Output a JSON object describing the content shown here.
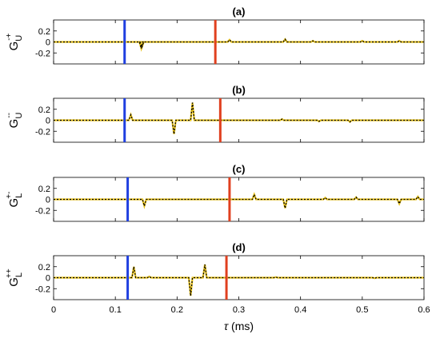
{
  "chart_data": [
    {
      "type": "line",
      "panel_label": "(a)",
      "ylabel": "G_U^{-+}",
      "ylabel_main": "G",
      "ylabel_sub": "U",
      "ylabel_sup": "-+",
      "xlim": [
        0,
        0.6
      ],
      "ylim": [
        -0.4,
        0.4
      ],
      "yticks": [
        "0.2",
        "0",
        "-0.2"
      ],
      "yticks_values": [
        0.2,
        0,
        -0.2
      ],
      "vlines": [
        {
          "x": 0.115,
          "color": "#1f3fe0"
        },
        {
          "x": 0.262,
          "color": "#e0401f"
        }
      ],
      "series": [
        {
          "color": "#e8c21a",
          "style": "solid",
          "spikes": [
            [
              0.142,
              -0.12
            ],
            [
              0.143,
              -0.1
            ],
            [
              0.285,
              0.04
            ],
            [
              0.375,
              0.05
            ],
            [
              0.42,
              0.02
            ],
            [
              0.5,
              0.02
            ],
            [
              0.56,
              0.02
            ]
          ]
        },
        {
          "color": "#000000",
          "style": "dashed",
          "spikes": [
            [
              0.142,
              -0.12
            ],
            [
              0.143,
              -0.1
            ],
            [
              0.285,
              0.04
            ],
            [
              0.375,
              0.05
            ],
            [
              0.42,
              0.02
            ],
            [
              0.5,
              0.02
            ],
            [
              0.56,
              0.02
            ]
          ]
        }
      ]
    },
    {
      "type": "line",
      "panel_label": "(b)",
      "ylabel": "G_U^{--}",
      "ylabel_main": "G",
      "ylabel_sub": "U",
      "ylabel_sup": "--",
      "xlim": [
        0,
        0.6
      ],
      "ylim": [
        -0.4,
        0.4
      ],
      "yticks": [
        "0.2",
        "0",
        "-0.2"
      ],
      "yticks_values": [
        0.2,
        0,
        -0.2
      ],
      "vlines": [
        {
          "x": 0.115,
          "color": "#1f3fe0"
        },
        {
          "x": 0.27,
          "color": "#e0401f"
        }
      ],
      "series": [
        {
          "color": "#e8c21a",
          "style": "solid",
          "spikes": [
            [
              0.125,
              0.1
            ],
            [
              0.195,
              -0.25
            ],
            [
              0.225,
              0.32
            ],
            [
              0.37,
              0.02
            ],
            [
              0.43,
              -0.02
            ],
            [
              0.48,
              -0.03
            ]
          ]
        },
        {
          "color": "#000000",
          "style": "dashed",
          "spikes": [
            [
              0.125,
              0.1
            ],
            [
              0.195,
              -0.25
            ],
            [
              0.225,
              0.32
            ],
            [
              0.37,
              0.02
            ],
            [
              0.43,
              -0.02
            ],
            [
              0.48,
              -0.03
            ]
          ]
        }
      ]
    },
    {
      "type": "line",
      "panel_label": "(c)",
      "ylabel": "G_L^{+-}",
      "ylabel_main": "G",
      "ylabel_sub": "L",
      "ylabel_sup": "+-",
      "xlim": [
        0,
        0.6
      ],
      "ylim": [
        -0.4,
        0.4
      ],
      "yticks": [
        "0.2",
        "0",
        "-0.2"
      ],
      "yticks_values": [
        0.2,
        0,
        -0.2
      ],
      "vlines": [
        {
          "x": 0.12,
          "color": "#1f3fe0"
        },
        {
          "x": 0.285,
          "color": "#e0401f"
        }
      ],
      "series": [
        {
          "color": "#e8c21a",
          "style": "solid",
          "spikes": [
            [
              0.147,
              -0.12
            ],
            [
              0.325,
              0.09
            ],
            [
              0.375,
              -0.16
            ],
            [
              0.44,
              0.03
            ],
            [
              0.49,
              0.04
            ],
            [
              0.56,
              -0.08
            ],
            [
              0.59,
              0.05
            ]
          ]
        },
        {
          "color": "#000000",
          "style": "dashed",
          "spikes": [
            [
              0.147,
              -0.12
            ],
            [
              0.325,
              0.09
            ],
            [
              0.375,
              -0.16
            ],
            [
              0.44,
              0.03
            ],
            [
              0.49,
              0.04
            ],
            [
              0.56,
              -0.08
            ],
            [
              0.59,
              0.05
            ]
          ]
        }
      ]
    },
    {
      "type": "line",
      "panel_label": "(d)",
      "ylabel": "G_L^{++}",
      "ylabel_main": "G",
      "ylabel_sub": "L",
      "ylabel_sup": "++",
      "xlim": [
        0,
        0.6
      ],
      "ylim": [
        -0.4,
        0.4
      ],
      "yticks": [
        "0.2",
        "0",
        "-0.2"
      ],
      "yticks_values": [
        0.2,
        0,
        -0.2
      ],
      "xticks": [
        "0",
        "0.1",
        "0.2",
        "0.3",
        "0.4",
        "0.5",
        "0.6"
      ],
      "xticks_values": [
        0,
        0.1,
        0.2,
        0.3,
        0.4,
        0.5,
        0.6
      ],
      "xlabel": "τ (ms)",
      "xlabel_symbol": "τ",
      "xlabel_unit": " (ms)",
      "vlines": [
        {
          "x": 0.12,
          "color": "#1f3fe0"
        },
        {
          "x": 0.28,
          "color": "#e0401f"
        }
      ],
      "series": [
        {
          "color": "#e8c21a",
          "style": "solid",
          "spikes": [
            [
              0.13,
              0.2
            ],
            [
              0.155,
              0.02
            ],
            [
              0.222,
              -0.33
            ],
            [
              0.245,
              0.24
            ],
            [
              0.36,
              0.01
            ],
            [
              0.52,
              -0.01
            ]
          ]
        },
        {
          "color": "#000000",
          "style": "dashed",
          "spikes": [
            [
              0.13,
              0.2
            ],
            [
              0.155,
              0.02
            ],
            [
              0.222,
              -0.33
            ],
            [
              0.245,
              0.24
            ],
            [
              0.36,
              0.01
            ],
            [
              0.52,
              -0.01
            ]
          ]
        }
      ]
    }
  ]
}
